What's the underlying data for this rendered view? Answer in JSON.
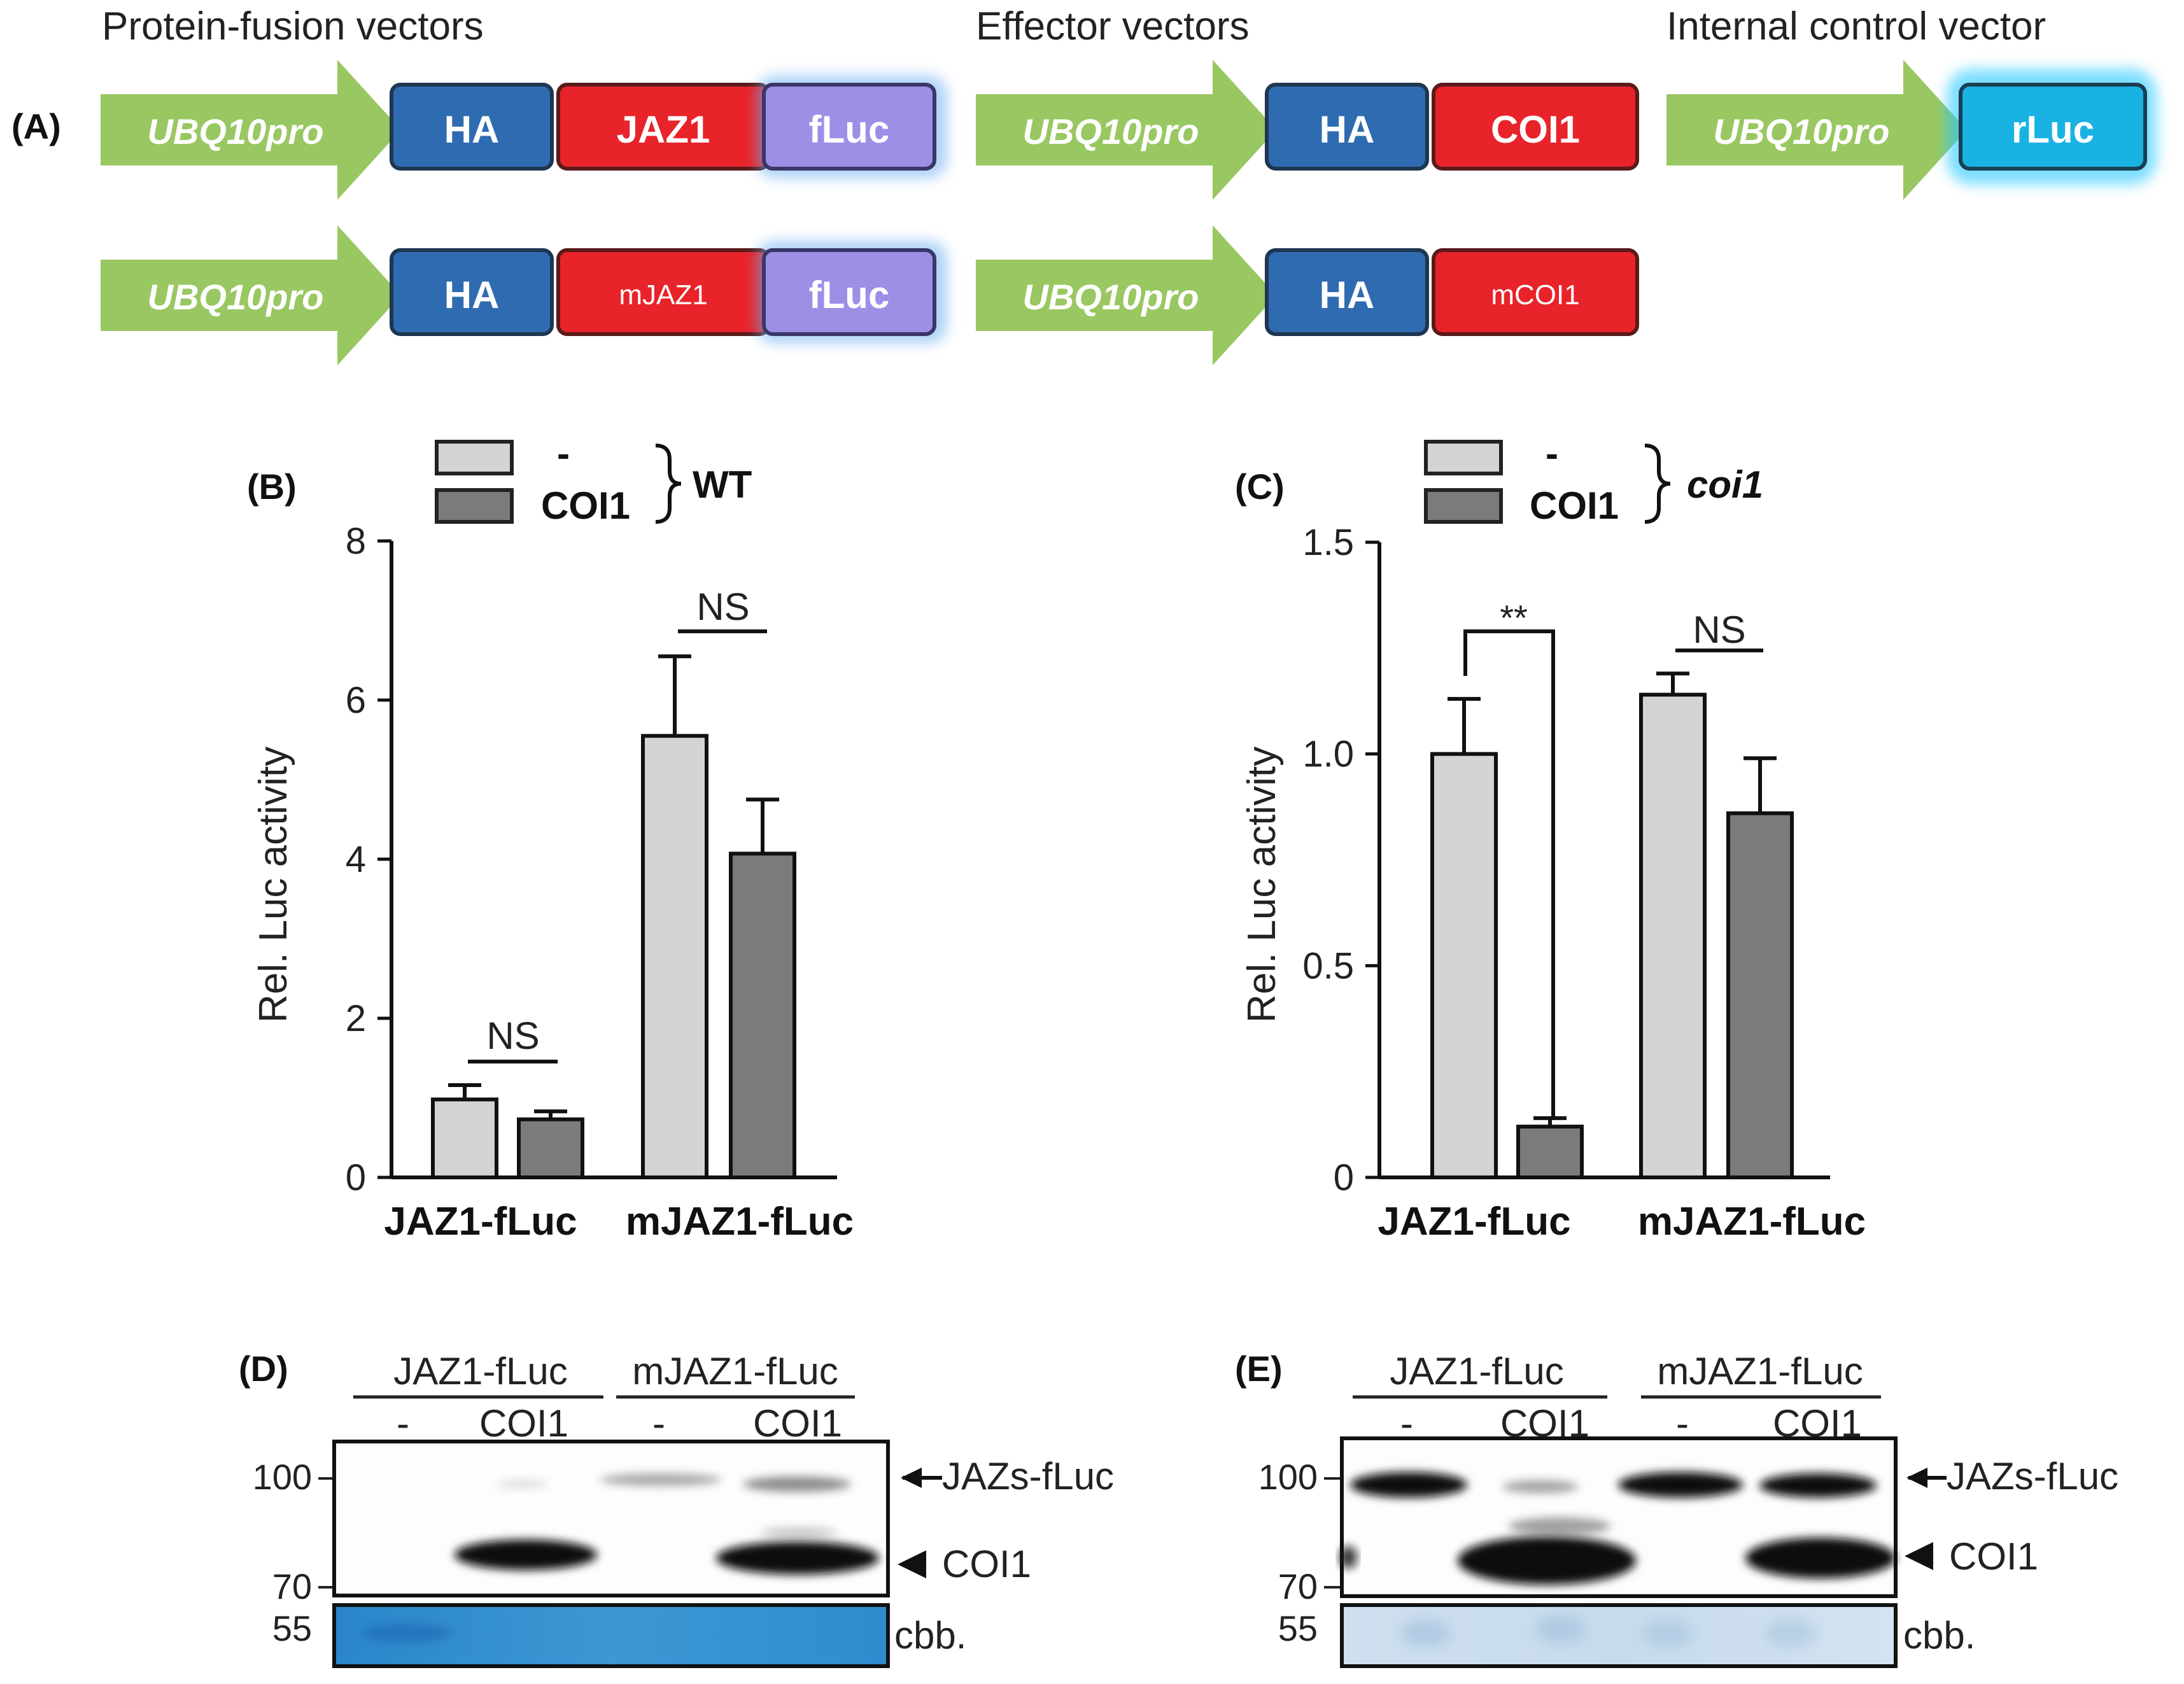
{
  "panelA": {
    "label": "(A)",
    "headings": {
      "fusion": "Protein-fusion vectors",
      "effector": "Effector vectors",
      "control": "Internal control vector"
    },
    "promoter": "UBQ10pro",
    "tag": "HA",
    "fusion_top": {
      "gene": "JAZ1",
      "reporter": "fLuc"
    },
    "fusion_bottom": {
      "gene": "mJAZ1",
      "reporter": "fLuc"
    },
    "effector_top": {
      "gene": "COI1"
    },
    "effector_bottom": {
      "gene": "mCOI1"
    },
    "control": {
      "reporter": "rLuc"
    },
    "colors": {
      "promoter": "#93c45a",
      "tag": "#2f6bb0",
      "gene": "#e8232a",
      "fluc": "#9d8fe6",
      "rluc": "#1ab2e3"
    }
  },
  "panelB": {
    "label": "(B)",
    "legend": {
      "minus": "-",
      "coi1": "COI1",
      "genotype": "WT"
    },
    "sig": {
      "group1": "NS",
      "group2": "NS"
    }
  },
  "panelC": {
    "label": "(C)",
    "legend": {
      "minus": "-",
      "coi1": "COI1",
      "genotype": "coi1"
    },
    "sig": {
      "group1": "**",
      "group2": "NS"
    }
  },
  "panelD": {
    "label": "(D)",
    "groups": [
      "JAZ1-fLuc",
      "mJAZ1-fLuc"
    ],
    "lanes": [
      "-",
      "COI1",
      "-",
      "COI1"
    ],
    "markers": [
      "100",
      "70",
      "55"
    ],
    "bands": {
      "jazs": "JAZs-fLuc",
      "coi1": "COI1",
      "cbb": "cbb."
    }
  },
  "panelE": {
    "label": "(E)",
    "groups": [
      "JAZ1-fLuc",
      "mJAZ1-fLuc"
    ],
    "lanes": [
      "-",
      "COI1",
      "-",
      "COI1"
    ],
    "markers": [
      "100",
      "70",
      "55"
    ],
    "bands": {
      "jazs": "JAZs-fLuc",
      "coi1": "COI1",
      "cbb": "cbb."
    }
  },
  "chart_data": [
    {
      "type": "bar",
      "panel": "B",
      "categories": [
        "JAZ1-fLuc",
        "mJAZ1-fLuc"
      ],
      "series": [
        {
          "name": "-",
          "color": "#d4d4d4",
          "values": [
            0.98,
            5.55
          ],
          "errors": [
            0.18,
            1.0
          ]
        },
        {
          "name": "COI1",
          "color": "#7b7b7b",
          "values": [
            0.73,
            4.07
          ],
          "errors": [
            0.1,
            0.68
          ]
        }
      ],
      "ylabel": "Rel. Luc activity",
      "ylim": [
        0,
        8
      ],
      "yticks": [
        "0",
        "2",
        "4",
        "6",
        "8"
      ],
      "ytick_values": [
        0,
        2,
        4,
        6,
        8
      ]
    },
    {
      "type": "bar",
      "panel": "C",
      "categories": [
        "JAZ1-fLuc",
        "mJAZ1-fLuc"
      ],
      "series": [
        {
          "name": "-",
          "color": "#d4d4d4",
          "values": [
            1.0,
            1.14
          ],
          "errors": [
            0.13,
            0.05
          ]
        },
        {
          "name": "COI1",
          "color": "#7b7b7b",
          "values": [
            0.12,
            0.86
          ],
          "errors": [
            0.02,
            0.13
          ]
        }
      ],
      "ylabel": "Rel. Luc activity",
      "ylim": [
        0,
        1.5
      ],
      "yticks": [
        "0",
        "0.5",
        "1.0",
        "1.5"
      ],
      "ytick_values": [
        0,
        0.5,
        1.0,
        1.5
      ]
    }
  ]
}
